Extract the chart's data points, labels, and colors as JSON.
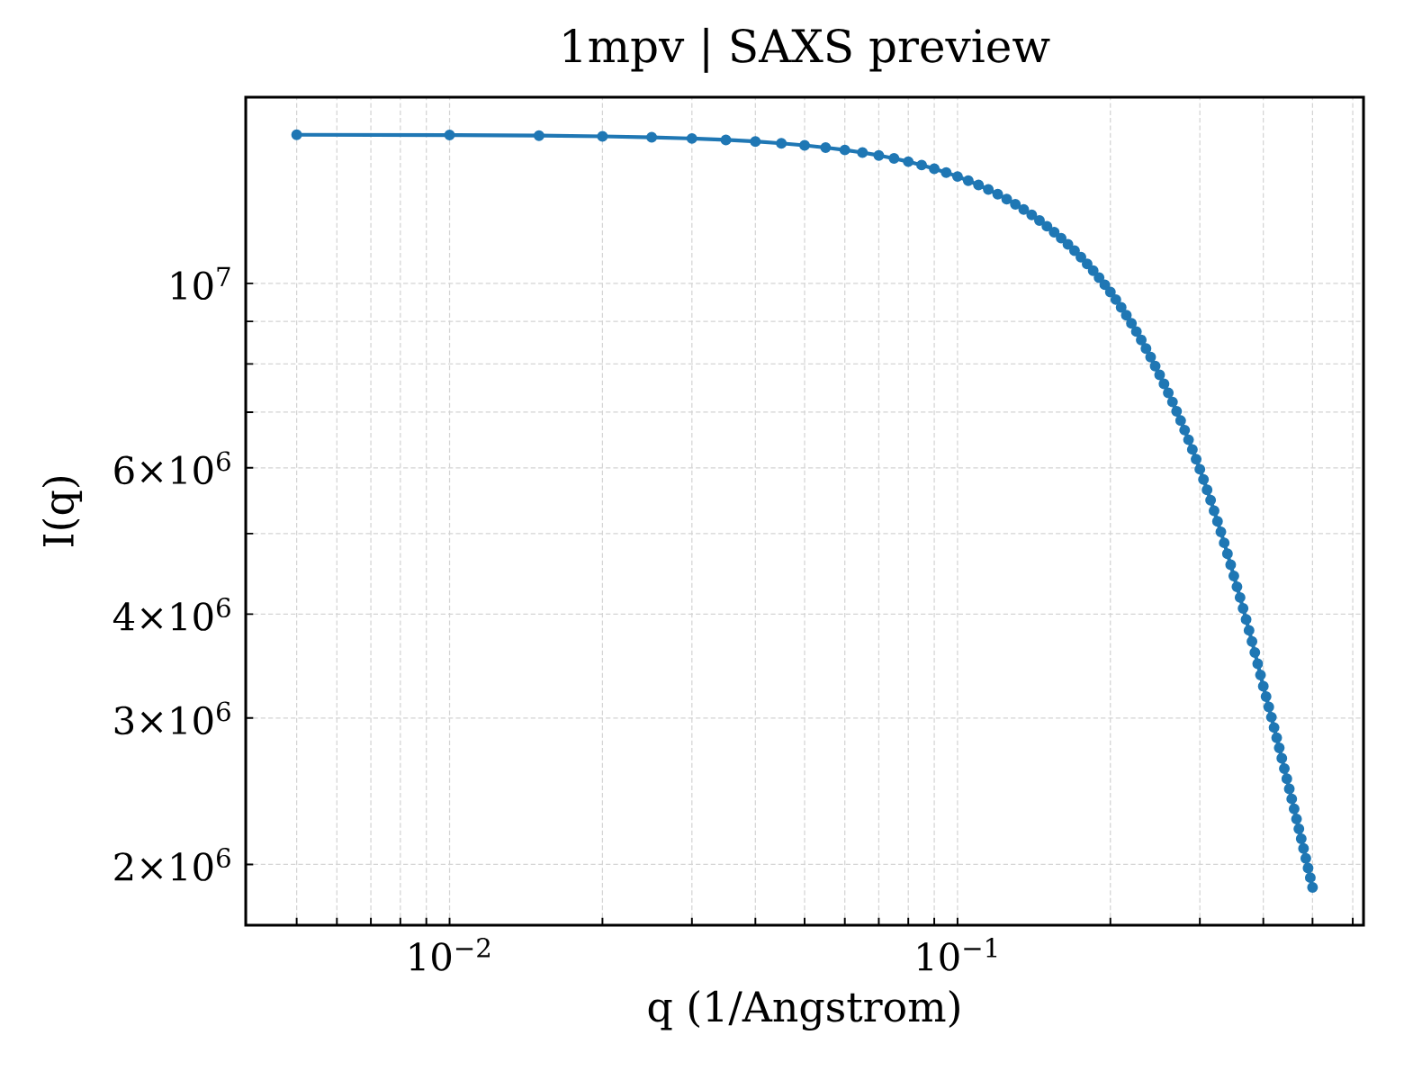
{
  "chart_data": {
    "type": "line",
    "title": "1mpv | SAXS preview",
    "xlabel": "q (1/Angstrom)",
    "ylabel": "I(q)",
    "x": [
      0.005,
      0.01,
      0.015,
      0.02,
      0.025,
      0.03,
      0.035,
      0.04,
      0.045,
      0.05,
      0.055,
      0.06,
      0.065,
      0.07,
      0.075,
      0.08,
      0.085,
      0.09,
      0.095,
      0.1,
      0.105,
      0.11,
      0.115,
      0.12,
      0.125,
      0.13,
      0.135,
      0.14,
      0.145,
      0.15,
      0.155,
      0.16,
      0.165,
      0.17,
      0.175,
      0.18,
      0.185,
      0.19,
      0.195,
      0.2,
      0.205,
      0.21,
      0.215,
      0.22,
      0.225,
      0.23,
      0.235,
      0.24,
      0.245,
      0.25,
      0.255,
      0.26,
      0.265,
      0.27,
      0.275,
      0.28,
      0.285,
      0.29,
      0.295,
      0.3,
      0.305,
      0.31,
      0.315,
      0.32,
      0.325,
      0.33,
      0.335,
      0.34,
      0.345,
      0.35,
      0.355,
      0.36,
      0.365,
      0.37,
      0.375,
      0.38,
      0.385,
      0.39,
      0.395,
      0.4,
      0.405,
      0.41,
      0.415,
      0.42,
      0.425,
      0.43,
      0.435,
      0.44,
      0.445,
      0.45,
      0.455,
      0.46,
      0.465,
      0.47,
      0.475,
      0.48,
      0.485,
      0.49,
      0.495,
      0.5
    ],
    "values": [
      15095000,
      15082000,
      15059000,
      15028000,
      14988000,
      14939000,
      14882000,
      14816000,
      14742000,
      14659000,
      14569000,
      14472000,
      14367000,
      14255000,
      14136000,
      14011000,
      13879000,
      13740000,
      13596000,
      13446000,
      13292000,
      13133000,
      12969000,
      12801000,
      12628000,
      12452000,
      12273000,
      12090000,
      11904000,
      11715000,
      11526000,
      11335000,
      11142000,
      10947000,
      10752000,
      10555000,
      10358000,
      10160000,
      9962000,
      9764000,
      9561000,
      9358000,
      9155000,
      8953000,
      8751000,
      8551000,
      8351000,
      8153000,
      7956000,
      7761000,
      7572000,
      7385000,
      7201000,
      7018000,
      6838000,
      6661000,
      6485000,
      6313000,
      6143000,
      5976000,
      5810000,
      5646000,
      5486000,
      5328000,
      5174000,
      5023000,
      4874000,
      4729000,
      4586000,
      4447000,
      4316000,
      4189000,
      4064000,
      3943000,
      3825000,
      3709000,
      3597000,
      3487000,
      3380000,
      3276000,
      3184000,
      3094000,
      3007000,
      2922000,
      2840000,
      2761000,
      2683000,
      2608000,
      2536000,
      2465000,
      2398000,
      2332000,
      2268000,
      2207000,
      2147000,
      2090000,
      2034000,
      1980000,
      1928000,
      1877000
    ],
    "color": "#1f77b4",
    "marker": "circle",
    "line_style": "solid",
    "log": "xy",
    "grid": true,
    "xlim": [
      0.00397,
      0.63
    ],
    "ylim": [
      1690000,
      16750000
    ],
    "xticks": [
      {
        "value": 0.005,
        "label": null
      },
      {
        "value": 0.006,
        "label": null
      },
      {
        "value": 0.007,
        "label": null
      },
      {
        "value": 0.008,
        "label": null
      },
      {
        "value": 0.009,
        "label": null
      },
      {
        "value": 0.01,
        "label": "10$^{−2}$"
      },
      {
        "value": 0.02,
        "label": null
      },
      {
        "value": 0.03,
        "label": null
      },
      {
        "value": 0.04,
        "label": null
      },
      {
        "value": 0.05,
        "label": null
      },
      {
        "value": 0.06,
        "label": null
      },
      {
        "value": 0.07,
        "label": null
      },
      {
        "value": 0.08,
        "label": null
      },
      {
        "value": 0.09,
        "label": null
      },
      {
        "value": 0.1,
        "label": "10$^{−1}$"
      },
      {
        "value": 0.2,
        "label": null
      },
      {
        "value": 0.3,
        "label": null
      },
      {
        "value": 0.4,
        "label": null
      },
      {
        "value": 0.5,
        "label": null
      },
      {
        "value": 0.6,
        "label": null
      }
    ],
    "yticks": [
      {
        "value": 2000000,
        "label": "2×10$^{6}$"
      },
      {
        "value": 3000000,
        "label": "3×10$^{6}$"
      },
      {
        "value": 4000000,
        "label": "4×10$^{6}$"
      },
      {
        "value": 5000000,
        "label": null
      },
      {
        "value": 6000000,
        "label": "6×10$^{6}$"
      },
      {
        "value": 7000000,
        "label": null
      },
      {
        "value": 8000000,
        "label": null
      },
      {
        "value": 9000000,
        "label": null
      },
      {
        "value": 10000000,
        "label": "10$^{7}$"
      }
    ]
  }
}
